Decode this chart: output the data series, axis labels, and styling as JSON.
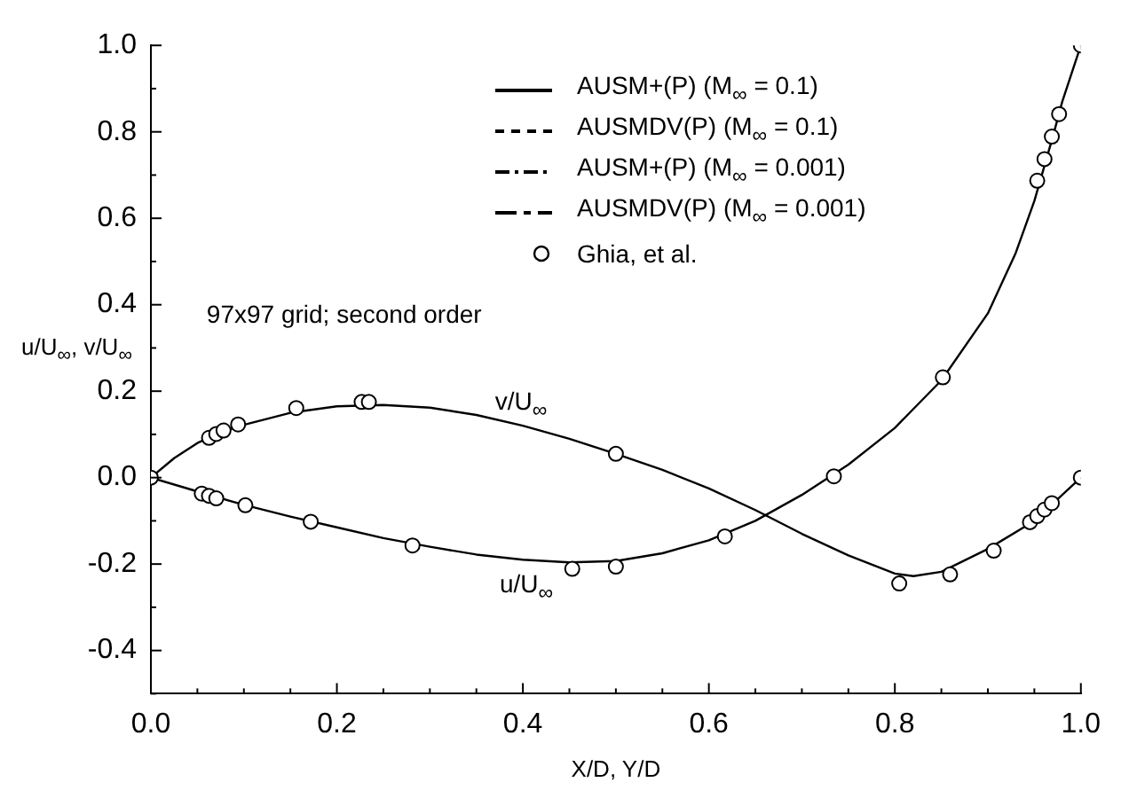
{
  "chart_data": {
    "type": "line",
    "xlabel": "X/D, Y/D",
    "ylabel": "u/U$_{∞}$, v/U$_{∞}$",
    "xlim": [
      0,
      1
    ],
    "ylim": [
      -0.5,
      1.0
    ],
    "xticks": [
      {
        "value": 0,
        "label": "0.0"
      },
      {
        "value": 0.05,
        "label": null
      },
      {
        "value": 0.1,
        "label": null
      },
      {
        "value": 0.15,
        "label": null
      },
      0.2,
      {
        "value": 0.25,
        "label": null
      },
      {
        "value": 0.3,
        "label": null
      },
      {
        "value": 0.35,
        "label": null
      },
      0.4,
      {
        "value": 0.45,
        "label": null
      },
      {
        "value": 0.5,
        "label": null
      },
      {
        "value": 0.55,
        "label": null
      },
      0.6,
      {
        "value": 0.65,
        "label": null
      },
      {
        "value": 0.7,
        "label": null
      },
      {
        "value": 0.75,
        "label": null
      },
      0.8,
      {
        "value": 0.85,
        "label": null
      },
      {
        "value": 0.9,
        "label": null
      },
      {
        "value": 0.95,
        "label": null
      },
      {
        "value": 1,
        "label": "1.0"
      }
    ],
    "yticks": [
      {
        "value": -0.5,
        "label": null
      },
      -0.4,
      {
        "value": -0.3,
        "label": null
      },
      -0.2,
      {
        "value": -0.1,
        "label": null
      },
      {
        "value": 0,
        "label": "0.0"
      },
      {
        "value": 0.1,
        "label": null
      },
      0.2,
      {
        "value": 0.3,
        "label": null
      },
      0.4,
      {
        "value": 0.5,
        "label": null
      },
      0.6,
      {
        "value": 0.7,
        "label": null
      },
      0.8,
      {
        "value": 0.9,
        "label": null
      },
      {
        "value": 1,
        "label": "1.0"
      }
    ],
    "grid": false,
    "legend": "top",
    "annotations": [
      "97x97 grid; second order",
      "v/U$_{∞}$",
      "u/U$_{∞}$"
    ],
    "series": [
      {
        "name": "AUSM+(P) (M$_{∞}$ = 0.1)",
        "color": "#000000",
        "line_style": "solid",
        "marker": "none",
        "x": [
          0,
          0.05,
          0.1,
          0.15,
          0.2,
          0.25,
          0.3,
          0.35,
          0.4,
          0.45,
          0.5,
          0.55,
          0.6,
          0.65,
          0.7,
          0.75,
          0.8,
          0.85,
          0.9,
          0.93,
          0.95,
          0.97,
          0.98,
          1.0
        ],
        "values": [
          0,
          -0.032,
          -0.063,
          -0.09,
          -0.115,
          -0.14,
          -0.16,
          -0.178,
          -0.19,
          -0.196,
          -0.193,
          -0.175,
          -0.145,
          -0.1,
          -0.04,
          0.03,
          0.115,
          0.225,
          0.38,
          0.52,
          0.64,
          0.79,
          0.87,
          1.0
        ]
      },
      {
        "name": "AUSMDV(P) (M$_{∞}$ = 0.1)",
        "color": "#000000",
        "line_style": "dashed",
        "marker": "none"
      },
      {
        "name": "AUSM+(P) (M$_{∞}$ = 0.001)",
        "color": "#000000",
        "line_style": "dashed",
        "marker": "none"
      },
      {
        "name": "AUSMDV(P) (M$_{∞}$ = 0.001)",
        "color": "#000000",
        "line_style": "dashed",
        "marker": "none"
      },
      {
        "name": "Ghia, et al.",
        "type": "scatter",
        "color": "#000000",
        "marker": "circle",
        "x": [
          0,
          0.0625,
          0.0703,
          0.0781,
          0.0938,
          0.1563,
          0.2266,
          0.2344,
          0.5,
          0.8047,
          0.8594,
          0.9063,
          0.9453,
          0.9531,
          0.9609,
          0.9688,
          1.0,
          0.0547,
          0.0625,
          0.0703,
          0.1016,
          0.1719,
          0.2813,
          0.4531,
          0.5,
          0.6172,
          0.7344,
          0.8516,
          0.9531,
          0.9609,
          0.9688,
          0.9766,
          1.0
        ],
        "values": [
          0,
          0.092,
          0.101,
          0.109,
          0.123,
          0.161,
          0.175,
          0.175,
          0.055,
          -0.245,
          -0.224,
          -0.169,
          -0.103,
          -0.089,
          -0.074,
          -0.059,
          0,
          -0.037,
          -0.042,
          -0.048,
          -0.064,
          -0.102,
          -0.157,
          -0.211,
          -0.206,
          -0.136,
          0.003,
          0.232,
          0.687,
          0.737,
          0.789,
          0.841,
          1.0
        ]
      },
      {
        "color": "#000000",
        "line_style": "solid",
        "marker": "none",
        "x": [
          0,
          0.025,
          0.05,
          0.075,
          0.1,
          0.15,
          0.2,
          0.25,
          0.3,
          0.35,
          0.4,
          0.45,
          0.5,
          0.55,
          0.6,
          0.65,
          0.7,
          0.75,
          0.8,
          0.82,
          0.85,
          0.9,
          0.95,
          1.0
        ],
        "values": [
          0,
          0.045,
          0.08,
          0.105,
          0.122,
          0.15,
          0.165,
          0.168,
          0.162,
          0.145,
          0.12,
          0.09,
          0.055,
          0.018,
          -0.025,
          -0.075,
          -0.13,
          -0.18,
          -0.222,
          -0.228,
          -0.218,
          -0.165,
          -0.1,
          0
        ]
      }
    ]
  }
}
